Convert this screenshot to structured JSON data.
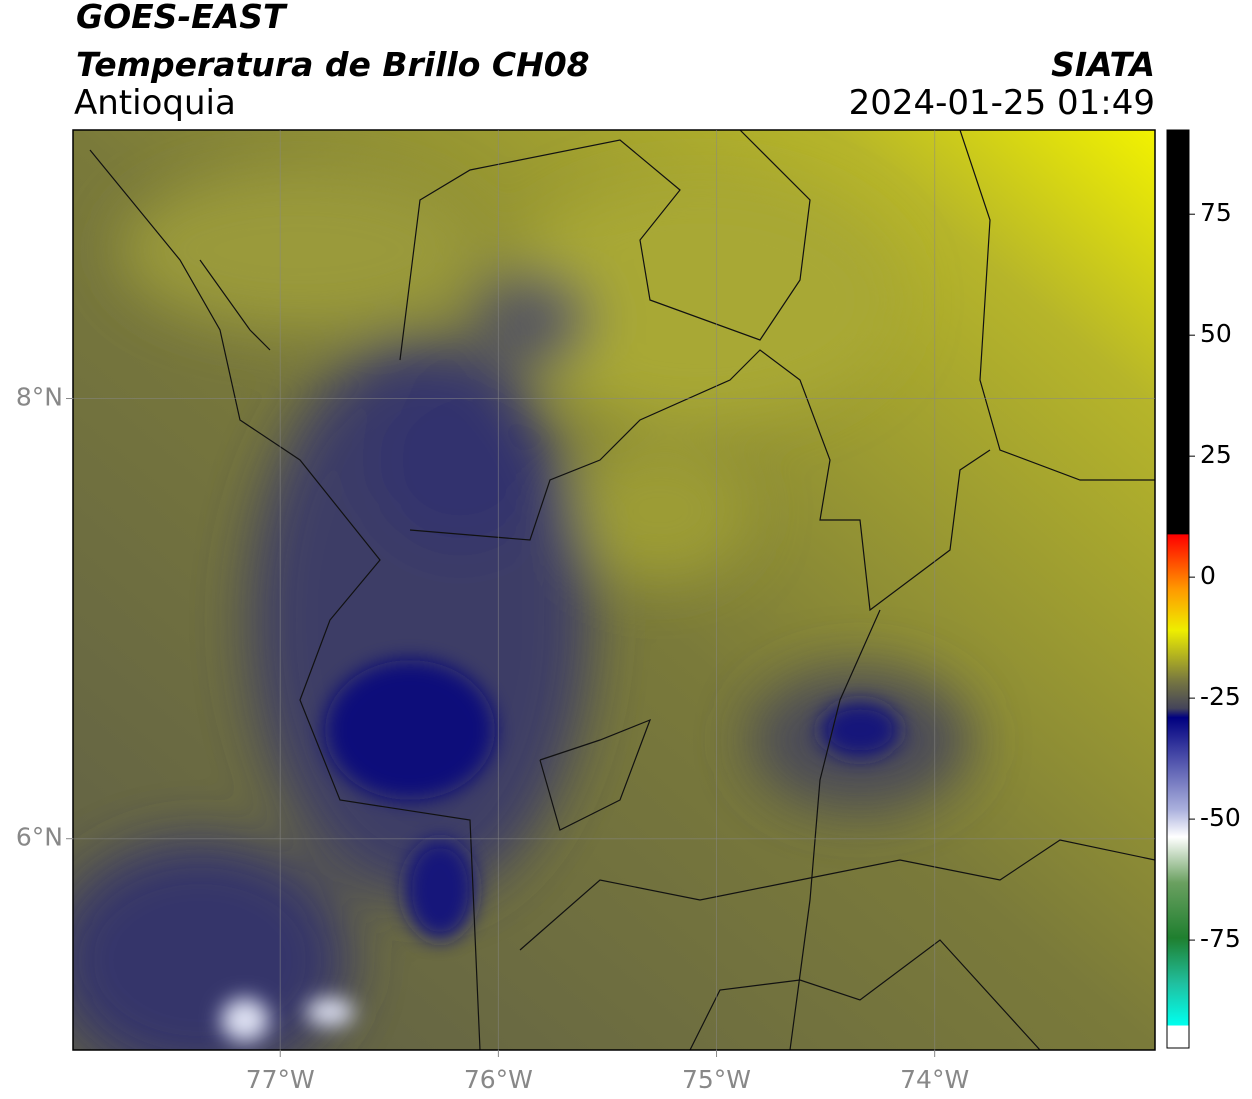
{
  "header": {
    "title": "GOES-EAST",
    "subtitle": "Temperatura de Brillo CH08",
    "region": "Antioquia",
    "source": "SIATA",
    "datetime": "2024-01-25 01:49"
  },
  "map": {
    "xlim": [
      -77.95,
      -72.99
    ],
    "ylim": [
      5.04,
      9.22
    ],
    "xticks": [
      {
        "value": -77,
        "label": "77°W"
      },
      {
        "value": -76,
        "label": "76°W"
      },
      {
        "value": -75,
        "label": "75°W"
      },
      {
        "value": -74,
        "label": "74°W"
      }
    ],
    "yticks": [
      {
        "value": 8,
        "label": "8°N"
      },
      {
        "value": 6,
        "label": "6°N"
      }
    ]
  },
  "colorbar": {
    "lim": [
      -97.3,
      92.4
    ],
    "ticks": [
      75,
      50,
      25,
      0,
      -25,
      -50,
      -75
    ]
  }
}
